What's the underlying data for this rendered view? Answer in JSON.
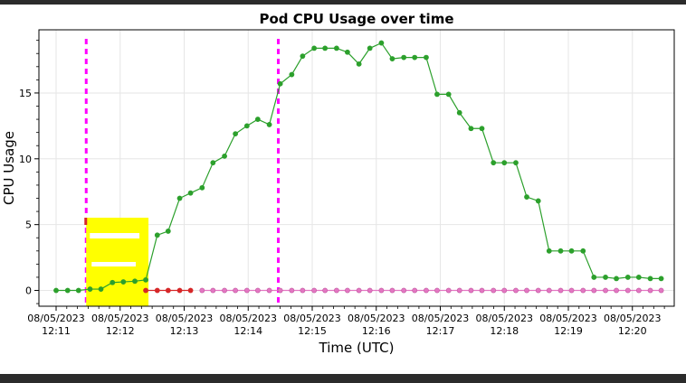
{
  "chart_data": {
    "type": "line",
    "title": "Pod CPU Usage over time",
    "xlabel": "Time (UTC)",
    "ylabel": "CPU Usage",
    "xlim": [
      0,
      9.7
    ],
    "ylim": [
      -1.2,
      19.8
    ],
    "yticks": [
      0,
      5,
      10,
      15
    ],
    "xticks": [
      {
        "x": 0.0,
        "date": "08/05/2023",
        "time": "12:11"
      },
      {
        "x": 1.0,
        "date": "08/05/2023",
        "time": "12:12"
      },
      {
        "x": 2.0,
        "date": "08/05/2023",
        "time": "12:13"
      },
      {
        "x": 3.0,
        "date": "08/05/2023",
        "time": "12:14"
      },
      {
        "x": 4.0,
        "date": "08/05/2023",
        "time": "12:15"
      },
      {
        "x": 5.0,
        "date": "08/05/2023",
        "time": "12:16"
      },
      {
        "x": 6.0,
        "date": "08/05/2023",
        "time": "12:17"
      },
      {
        "x": 7.0,
        "date": "08/05/2023",
        "time": "12:18"
      },
      {
        "x": 8.0,
        "date": "08/05/2023",
        "time": "12:19"
      },
      {
        "x": 9.0,
        "date": "08/05/2023",
        "time": "12:20"
      }
    ],
    "grid": true,
    "vlines": [
      0.47,
      3.47
    ],
    "series": [
      {
        "name": "green",
        "color": "#2ca02c",
        "x": [
          0.0,
          0.18,
          0.35,
          0.53,
          0.7,
          0.88,
          1.05,
          1.23,
          1.4,
          1.58,
          1.75,
          1.93,
          2.1,
          2.28,
          2.45,
          2.63,
          2.8,
          2.98,
          3.15,
          3.33,
          3.5,
          3.68,
          3.85,
          4.03,
          4.2,
          4.38,
          4.55,
          4.73,
          4.9,
          5.08,
          5.25,
          5.43,
          5.6,
          5.78,
          5.95,
          6.13,
          6.3,
          6.48,
          6.65,
          6.83,
          7.0,
          7.18,
          7.35,
          7.53,
          7.7,
          7.88,
          8.05,
          8.23,
          8.4,
          8.58,
          8.75,
          8.93,
          9.1,
          9.28,
          9.45
        ],
        "values": [
          0.0,
          0.0,
          0.0,
          0.1,
          0.1,
          0.6,
          0.65,
          0.7,
          0.8,
          4.2,
          4.5,
          7.0,
          7.4,
          7.8,
          9.7,
          10.2,
          11.9,
          12.5,
          13.0,
          12.6,
          15.7,
          16.4,
          17.8,
          18.4,
          18.4,
          18.4,
          18.1,
          17.2,
          18.4,
          18.8,
          17.6,
          17.7,
          17.7,
          17.7,
          14.9,
          14.9,
          13.5,
          12.3,
          12.3,
          9.7,
          9.7,
          9.7,
          7.1,
          6.8,
          3.0,
          3.0,
          3.0,
          3.0,
          1.0,
          1.0,
          0.9,
          1.0,
          1.0,
          0.9,
          0.9
        ]
      },
      {
        "name": "red",
        "color": "#d62728",
        "x": [
          1.4,
          1.58,
          1.75,
          1.93,
          2.1
        ],
        "values": [
          0,
          0,
          0,
          0,
          0
        ]
      },
      {
        "name": "pink",
        "color": "#e377c2",
        "x": [
          2.28,
          2.45,
          2.63,
          2.8,
          2.98,
          3.15,
          3.33,
          3.5,
          3.68,
          3.85,
          4.03,
          4.2,
          4.38,
          4.55,
          4.73,
          4.9,
          5.08,
          5.25,
          5.43,
          5.6,
          5.78,
          5.95,
          6.13,
          6.3,
          6.48,
          6.65,
          6.83,
          7.0,
          7.18,
          7.35,
          7.53,
          7.7,
          7.88,
          8.05,
          8.23,
          8.4,
          8.58,
          8.75,
          8.93,
          9.1,
          9.28,
          9.45
        ],
        "values": [
          0,
          0,
          0,
          0,
          0,
          0,
          0,
          0,
          0,
          0,
          0,
          0,
          0,
          0,
          0,
          0,
          0,
          0,
          0,
          0,
          0,
          0,
          0,
          0,
          0,
          0,
          0,
          0,
          0,
          0,
          0,
          0,
          0,
          0,
          0,
          0,
          0,
          0,
          0,
          0,
          0,
          0
        ]
      }
    ],
    "redaction_color": "#ffff00"
  }
}
